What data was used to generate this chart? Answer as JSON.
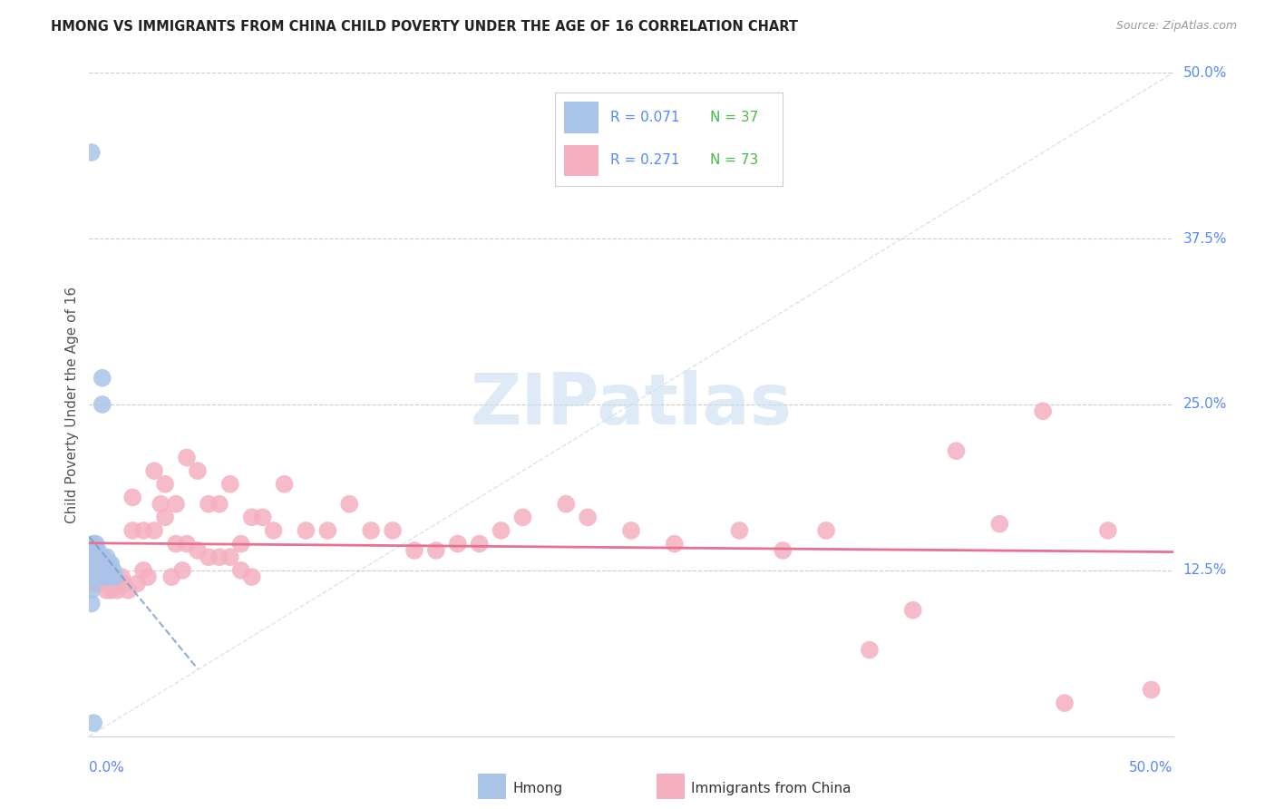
{
  "title": "HMONG VS IMMIGRANTS FROM CHINA CHILD POVERTY UNDER THE AGE OF 16 CORRELATION CHART",
  "source": "Source: ZipAtlas.com",
  "ylabel": "Child Poverty Under the Age of 16",
  "background_color": "#ffffff",
  "grid_color": "#cccccc",
  "hmong_color": "#aac4e8",
  "china_color": "#f5b0c0",
  "hmong_line_color": "#7799cc",
  "china_line_color": "#e87090",
  "hmong_edge_color": "#aac4e8",
  "china_edge_color": "#f5b0c0",
  "ytick_color": "#5588ff",
  "xtick_color": "#5588ff",
  "title_color": "#222222",
  "source_color": "#999999",
  "ylabel_color": "#555555",
  "legend_text_r_color": "#5588ff",
  "legend_text_n_color": "#44bb44",
  "watermark_color": "#c8dff0",
  "xlim": [
    0.0,
    0.5
  ],
  "ylim": [
    0.0,
    0.5
  ],
  "hmong_x": [
    0.001,
    0.001,
    0.001,
    0.001,
    0.001,
    0.002,
    0.002,
    0.002,
    0.002,
    0.003,
    0.003,
    0.003,
    0.003,
    0.003,
    0.004,
    0.004,
    0.004,
    0.004,
    0.005,
    0.005,
    0.005,
    0.005,
    0.006,
    0.006,
    0.006,
    0.007,
    0.007,
    0.007,
    0.008,
    0.008,
    0.008,
    0.009,
    0.009,
    0.01,
    0.011,
    0.012,
    0.002
  ],
  "hmong_y": [
    0.44,
    0.135,
    0.12,
    0.11,
    0.1,
    0.145,
    0.14,
    0.135,
    0.13,
    0.145,
    0.14,
    0.135,
    0.13,
    0.125,
    0.14,
    0.13,
    0.125,
    0.12,
    0.135,
    0.13,
    0.125,
    0.12,
    0.27,
    0.25,
    0.135,
    0.13,
    0.125,
    0.12,
    0.135,
    0.13,
    0.12,
    0.13,
    0.12,
    0.13,
    0.125,
    0.12,
    0.01
  ],
  "china_x": [
    0.001,
    0.002,
    0.003,
    0.004,
    0.005,
    0.006,
    0.007,
    0.008,
    0.009,
    0.01,
    0.012,
    0.013,
    0.015,
    0.016,
    0.018,
    0.02,
    0.022,
    0.025,
    0.027,
    0.03,
    0.033,
    0.035,
    0.038,
    0.04,
    0.043,
    0.045,
    0.05,
    0.055,
    0.06,
    0.065,
    0.07,
    0.075,
    0.08,
    0.085,
    0.09,
    0.1,
    0.11,
    0.12,
    0.13,
    0.14,
    0.15,
    0.16,
    0.17,
    0.18,
    0.19,
    0.2,
    0.22,
    0.23,
    0.25,
    0.27,
    0.3,
    0.32,
    0.34,
    0.36,
    0.38,
    0.4,
    0.42,
    0.44,
    0.45,
    0.47,
    0.49,
    0.02,
    0.025,
    0.03,
    0.035,
    0.04,
    0.045,
    0.05,
    0.055,
    0.06,
    0.065,
    0.07,
    0.075
  ],
  "china_y": [
    0.115,
    0.115,
    0.13,
    0.12,
    0.115,
    0.12,
    0.115,
    0.11,
    0.115,
    0.11,
    0.115,
    0.11,
    0.12,
    0.115,
    0.11,
    0.18,
    0.115,
    0.125,
    0.12,
    0.2,
    0.175,
    0.19,
    0.12,
    0.175,
    0.125,
    0.21,
    0.2,
    0.175,
    0.175,
    0.19,
    0.145,
    0.165,
    0.165,
    0.155,
    0.19,
    0.155,
    0.155,
    0.175,
    0.155,
    0.155,
    0.14,
    0.14,
    0.145,
    0.145,
    0.155,
    0.165,
    0.175,
    0.165,
    0.155,
    0.145,
    0.155,
    0.14,
    0.155,
    0.065,
    0.095,
    0.215,
    0.16,
    0.245,
    0.025,
    0.155,
    0.035,
    0.155,
    0.155,
    0.155,
    0.165,
    0.145,
    0.145,
    0.14,
    0.135,
    0.135,
    0.135,
    0.125,
    0.12
  ]
}
